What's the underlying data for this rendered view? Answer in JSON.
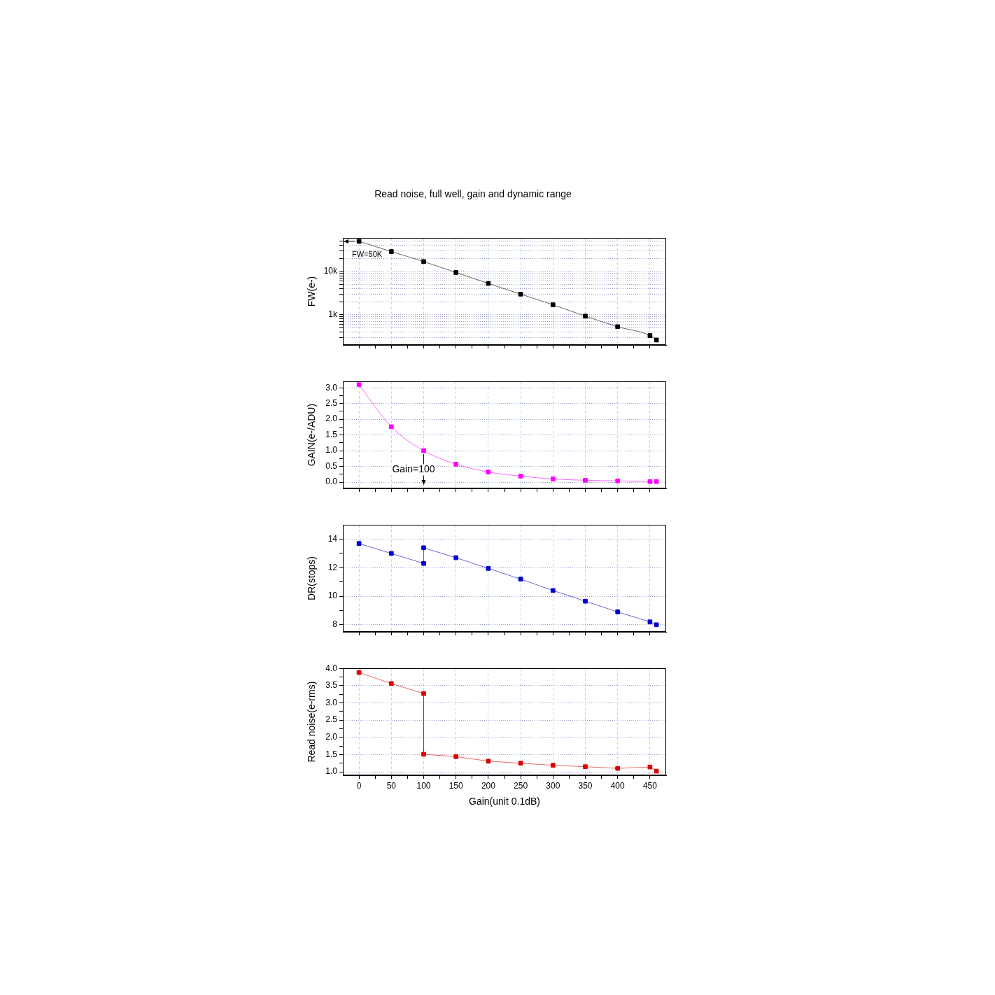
{
  "chart_data": [
    {
      "type": "line",
      "title": "Read noise, full well, gain and dynamic range",
      "ylabel": "FW(e-)",
      "x": [
        0,
        50,
        100,
        150,
        200,
        250,
        300,
        350,
        400,
        450,
        460
      ],
      "series": [
        {
          "color": "#000000",
          "values": [
            50000,
            29000,
            17000,
            9500,
            5300,
            3000,
            1700,
            930,
            530,
            330,
            260
          ]
        }
      ],
      "log": true,
      "xlim": [
        -25,
        475
      ],
      "xticks": [
        0,
        {
          "value": 25,
          "label": null
        },
        50,
        {
          "value": 75,
          "label": null
        },
        100,
        {
          "value": 125,
          "label": null
        },
        150,
        {
          "value": 175,
          "label": null
        },
        200,
        {
          "value": 225,
          "label": null
        },
        250,
        {
          "value": 275,
          "label": null
        },
        300,
        {
          "value": 325,
          "label": null
        },
        350,
        {
          "value": 375,
          "label": null
        },
        400,
        {
          "value": 425,
          "label": null
        },
        450
      ],
      "ylim": [
        200,
        60000
      ],
      "yticks": [
        {
          "value": 300,
          "label": null
        },
        {
          "value": 400,
          "label": null
        },
        {
          "value": 500,
          "label": null
        },
        {
          "value": 600,
          "label": null
        },
        {
          "value": 700,
          "label": null
        },
        {
          "value": 800,
          "label": null
        },
        {
          "value": 900,
          "label": null
        },
        {
          "value": 1000,
          "label": "1k"
        },
        {
          "value": 2000,
          "label": null
        },
        {
          "value": 3000,
          "label": null
        },
        {
          "value": 4000,
          "label": null
        },
        {
          "value": 5000,
          "label": null
        },
        {
          "value": 6000,
          "label": null
        },
        {
          "value": 7000,
          "label": null
        },
        {
          "value": 8000,
          "label": null
        },
        {
          "value": 9000,
          "label": null
        },
        {
          "value": 10000,
          "label": "10k"
        },
        {
          "value": 20000,
          "label": null
        },
        {
          "value": 30000,
          "label": null
        },
        {
          "value": 40000,
          "label": null
        },
        {
          "value": 50000,
          "label": null
        }
      ],
      "grid": true,
      "legend": false,
      "marker": "square",
      "line_style": "solid",
      "tick_labels": "y",
      "annotations": [
        {
          "text": "FW=50K",
          "x": 0,
          "y": 50000
        }
      ]
    },
    {
      "type": "line",
      "ylabel": "GAIN(e-/ADU)",
      "x": [
        0,
        50,
        100,
        150,
        200,
        250,
        300,
        350,
        400,
        450,
        460
      ],
      "series": [
        {
          "color": "#ff00ff",
          "values": [
            3.1,
            1.76,
            1.0,
            0.57,
            0.32,
            0.19,
            0.1,
            0.06,
            0.04,
            0.02,
            0.02
          ]
        }
      ],
      "xlim": [
        -25,
        475
      ],
      "xticks": [
        0,
        {
          "value": 25,
          "label": null
        },
        50,
        {
          "value": 75,
          "label": null
        },
        100,
        {
          "value": 125,
          "label": null
        },
        150,
        {
          "value": 175,
          "label": null
        },
        200,
        {
          "value": 225,
          "label": null
        },
        250,
        {
          "value": 275,
          "label": null
        },
        300,
        {
          "value": 325,
          "label": null
        },
        350,
        {
          "value": 375,
          "label": null
        },
        400,
        {
          "value": 425,
          "label": null
        },
        450
      ],
      "ylim": [
        -0.2,
        3.2
      ],
      "yticks": [
        {
          "value": 0,
          "label": "0.0"
        },
        {
          "value": 0.25,
          "label": null
        },
        0.5,
        {
          "value": 0.75,
          "label": null
        },
        {
          "value": 1,
          "label": "1.0"
        },
        {
          "value": 1.25,
          "label": null
        },
        1.5,
        {
          "value": 1.75,
          "label": null
        },
        {
          "value": 2,
          "label": "2.0"
        },
        {
          "value": 2.25,
          "label": null
        },
        2.5,
        {
          "value": 2.75,
          "label": null
        },
        {
          "value": 3,
          "label": "3.0"
        }
      ],
      "grid": true,
      "legend": false,
      "marker": "square",
      "line_style": "solid",
      "tick_labels": "y",
      "annotations": [
        {
          "text": "Gain=100",
          "x": 100,
          "y": 1.0
        }
      ]
    },
    {
      "type": "line",
      "ylabel": "DR(stops)",
      "series": [
        {
          "color": "#0000cc",
          "x": [
            0,
            50,
            100,
            100,
            150,
            200,
            250,
            300,
            350,
            400,
            450,
            460
          ],
          "values": [
            13.7,
            13.0,
            12.3,
            13.4,
            12.7,
            11.95,
            11.2,
            10.4,
            9.65,
            8.9,
            8.2,
            8.0
          ]
        }
      ],
      "xlim": [
        -25,
        475
      ],
      "xticks": [
        0,
        {
          "value": 25,
          "label": null
        },
        50,
        {
          "value": 75,
          "label": null
        },
        100,
        {
          "value": 125,
          "label": null
        },
        150,
        {
          "value": 175,
          "label": null
        },
        200,
        {
          "value": 225,
          "label": null
        },
        250,
        {
          "value": 275,
          "label": null
        },
        300,
        {
          "value": 325,
          "label": null
        },
        350,
        {
          "value": 375,
          "label": null
        },
        400,
        {
          "value": 425,
          "label": null
        },
        450
      ],
      "ylim": [
        7.5,
        15
      ],
      "yticks": [
        8,
        {
          "value": 9,
          "label": null
        },
        10,
        {
          "value": 11,
          "label": null
        },
        12,
        {
          "value": 13,
          "label": null
        },
        14
      ],
      "grid": true,
      "legend": false,
      "marker": "square",
      "line_style": "solid",
      "tick_labels": "y"
    },
    {
      "type": "line",
      "xlabel": "Gain(unit 0.1dB)",
      "ylabel": "Read noise(e-rms)",
      "series": [
        {
          "color": "#dd0000",
          "x": [
            0,
            50,
            100,
            100,
            150,
            200,
            250,
            300,
            350,
            400,
            450,
            460
          ],
          "values": [
            3.88,
            3.56,
            3.27,
            1.51,
            1.44,
            1.31,
            1.25,
            1.19,
            1.15,
            1.1,
            1.14,
            1.02
          ]
        }
      ],
      "xlim": [
        -25,
        475
      ],
      "xticks": [
        0,
        {
          "value": 25,
          "label": null
        },
        50,
        {
          "value": 75,
          "label": null
        },
        100,
        {
          "value": 125,
          "label": null
        },
        150,
        {
          "value": 175,
          "label": null
        },
        200,
        {
          "value": 225,
          "label": null
        },
        250,
        {
          "value": 275,
          "label": null
        },
        300,
        {
          "value": 325,
          "label": null
        },
        350,
        {
          "value": 375,
          "label": null
        },
        400,
        {
          "value": 425,
          "label": null
        },
        450
      ],
      "ylim": [
        0.9,
        4.0
      ],
      "yticks": [
        {
          "value": 1,
          "label": "1.0"
        },
        {
          "value": 1.25,
          "label": null
        },
        1.5,
        {
          "value": 1.75,
          "label": null
        },
        {
          "value": 2,
          "label": "2.0"
        },
        {
          "value": 2.25,
          "label": null
        },
        2.5,
        {
          "value": 2.75,
          "label": null
        },
        {
          "value": 3,
          "label": "3.0"
        },
        {
          "value": 3.25,
          "label": null
        },
        3.5,
        {
          "value": 3.75,
          "label": null
        },
        {
          "value": 4,
          "label": "4.0"
        }
      ],
      "grid": true,
      "legend": false,
      "marker": "square",
      "line_style": "solid"
    }
  ]
}
